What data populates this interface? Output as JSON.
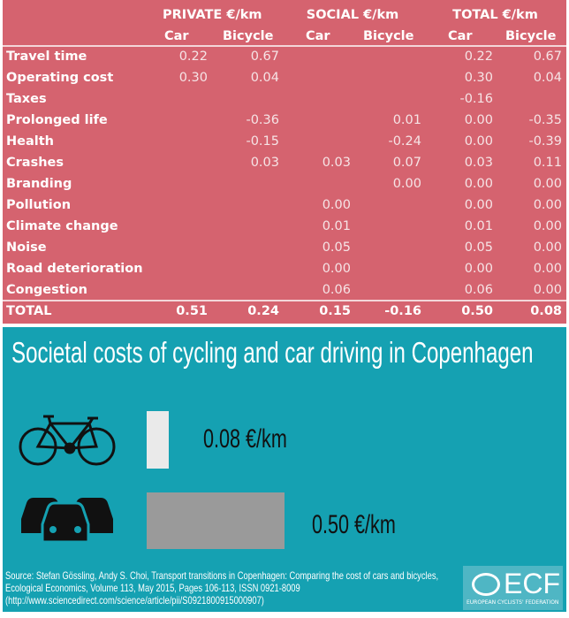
{
  "table": {
    "groups": [
      "PRIVATE €/km",
      "SOCIAL €/km",
      "TOTAL €/km"
    ],
    "subheaders": [
      "Car",
      "Bicycle",
      "Car",
      "Bicycle",
      "Car",
      "Bicycle"
    ],
    "rows": [
      {
        "label": "Travel time",
        "values": [
          "0.22",
          "0.67",
          "",
          "",
          "0.22",
          "0.67"
        ]
      },
      {
        "label": "Operating cost",
        "values": [
          "0.30",
          "0.04",
          "",
          "",
          "0.30",
          "0.04"
        ]
      },
      {
        "label": "Taxes",
        "values": [
          "",
          "",
          "",
          "",
          "-0.16",
          ""
        ]
      },
      {
        "label": "Prolonged life",
        "values": [
          "",
          "-0.36",
          "",
          "0.01",
          "0.00",
          "-0.35"
        ]
      },
      {
        "label": "Health",
        "values": [
          "",
          "-0.15",
          "",
          "-0.24",
          "0.00",
          "-0.39"
        ]
      },
      {
        "label": "Crashes",
        "values": [
          "",
          "0.03",
          "0.03",
          "0.07",
          "0.03",
          "0.11"
        ]
      },
      {
        "label": "Branding",
        "values": [
          "",
          "",
          "",
          "0.00",
          "0.00",
          "0.00"
        ]
      },
      {
        "label": "Pollution",
        "values": [
          "",
          "",
          "0.00",
          "",
          "0.00",
          "0.00"
        ]
      },
      {
        "label": "Climate change",
        "values": [
          "",
          "",
          "0.01",
          "",
          "0.01",
          "0.00"
        ]
      },
      {
        "label": "Noise",
        "values": [
          "",
          "",
          "0.05",
          "",
          "0.05",
          "0.00"
        ]
      },
      {
        "label": "Road deterioration",
        "values": [
          "",
          "",
          "0.00",
          "",
          "0.00",
          "0.00"
        ]
      },
      {
        "label": "Congestion",
        "values": [
          "",
          "",
          "0.06",
          "",
          "0.06",
          "0.00"
        ]
      }
    ],
    "total": {
      "label": "TOTAL",
      "values": [
        "0.51",
        "0.24",
        "0.15",
        "-0.16",
        "0.50",
        "0.08"
      ]
    }
  },
  "infographic": {
    "title": "Societal costs of cycling and car driving in Copenhagen",
    "items": [
      {
        "icon": "bicycle-icon",
        "value": 0.08,
        "label": "0.08 €/km",
        "bar_color": "#eaeaea"
      },
      {
        "icon": "cars-icon",
        "value": 0.5,
        "label": "0.50 €/km",
        "bar_color": "#9a9a9a"
      }
    ],
    "source": [
      "Source: Stefan Gössling, Andy S. Choi, Transport transitions in Copenhagen: Comparing the cost of cars and bicycles,",
      "Ecological Economics, Volume 113, May 2015, Pages 106-113, ISSN 0921-8009",
      "(http://www.sciencedirect.com/science/article/pii/S0921800915000907)"
    ],
    "logo": {
      "text": "ECF",
      "subtext": "EUROPEAN CYCLISTS' FEDERATION"
    }
  },
  "colors": {
    "table_bg": "#d5636f",
    "panel_bg": "#15a1b2"
  }
}
